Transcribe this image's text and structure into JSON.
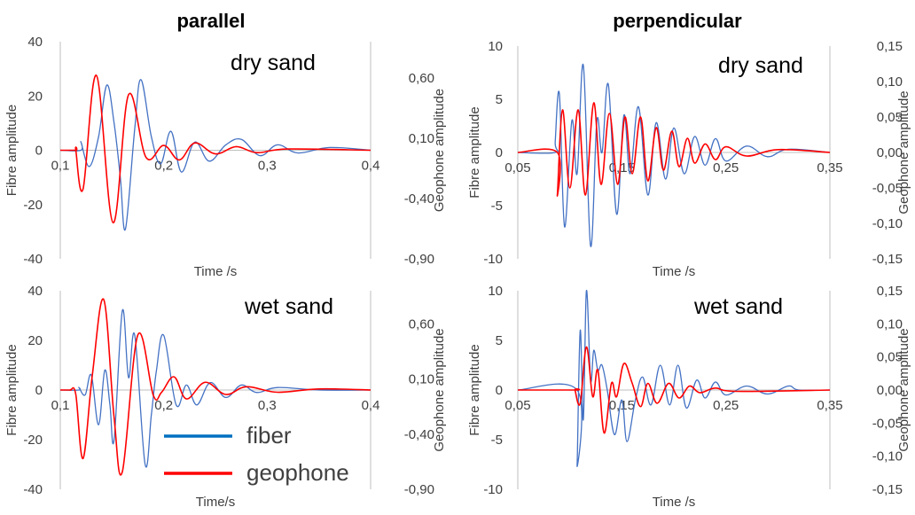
{
  "columns": [
    "parallel",
    "perpendicular"
  ],
  "legend": [
    {
      "label": "fiber",
      "color": "#0070c0"
    },
    {
      "label": "geophone",
      "color": "#ff0000"
    }
  ],
  "colors": {
    "fiber_line": "#4472c4",
    "geophone_line": "#ff0000",
    "axis": "#bfbfbf"
  },
  "chart_data": [
    {
      "type": "line",
      "column": "parallel",
      "panel_label": "dry sand",
      "xlabel": "Time /s",
      "ylabel": "Fibre amplitude",
      "y2label": "Geophone amplitude",
      "xlim": [
        0.1,
        0.4
      ],
      "ylim": [
        -40,
        40
      ],
      "y2lim": [
        -0.9,
        0.9
      ],
      "x_ticks": [
        "0,1",
        "0,2",
        "0,3",
        "0,4"
      ],
      "y_ticks": [
        "40",
        "20",
        "0",
        "-20",
        "-40"
      ],
      "y2_ticks": [
        "0,60",
        "0,10",
        "-0,40",
        "-0,90"
      ],
      "series": [
        {
          "name": "fiber",
          "axis": "left",
          "t0": 0.12,
          "peaks": [
            [
              0.12,
              3
            ],
            [
              0.128,
              -6
            ],
            [
              0.137,
              5
            ],
            [
              0.145,
              24
            ],
            [
              0.152,
              10
            ],
            [
              0.158,
              -10
            ],
            [
              0.163,
              -29
            ],
            [
              0.172,
              8
            ],
            [
              0.178,
              26
            ],
            [
              0.188,
              5
            ],
            [
              0.197,
              -5
            ],
            [
              0.207,
              7
            ],
            [
              0.217,
              -8
            ],
            [
              0.23,
              3
            ],
            [
              0.244,
              -4
            ],
            [
              0.26,
              2
            ],
            [
              0.275,
              4
            ],
            [
              0.293,
              -2
            ],
            [
              0.31,
              2
            ],
            [
              0.33,
              -1
            ],
            [
              0.36,
              1
            ],
            [
              0.4,
              0
            ]
          ]
        },
        {
          "name": "geophone",
          "axis": "right",
          "t0": 0.115,
          "peaks": [
            [
              0.115,
              0
            ],
            [
              0.122,
              -0.32
            ],
            [
              0.135,
              0.62
            ],
            [
              0.151,
              -0.6
            ],
            [
              0.166,
              0.46
            ],
            [
              0.183,
              -0.06
            ],
            [
              0.2,
              0.04
            ],
            [
              0.215,
              -0.08
            ],
            [
              0.23,
              0.06
            ],
            [
              0.25,
              -0.03
            ],
            [
              0.27,
              0.03
            ],
            [
              0.29,
              -0.02
            ],
            [
              0.32,
              0.01
            ],
            [
              0.4,
              0
            ]
          ]
        }
      ]
    },
    {
      "type": "line",
      "column": "perpendicular",
      "panel_label": "dry sand",
      "xlabel": "Time /s",
      "ylabel": "Fibre amplitude",
      "y2label": "Geophone amplitude",
      "xlim": [
        0.05,
        0.35
      ],
      "ylim": [
        -10,
        10
      ],
      "y2lim": [
        -0.15,
        0.15
      ],
      "x_ticks": [
        "0,05",
        "0,15",
        "0,25",
        "0,35"
      ],
      "y_ticks": [
        "10",
        "5",
        "0",
        "-5",
        "-10"
      ],
      "y2_ticks": [
        "0,15",
        "0,10",
        "0,05",
        "0,00",
        "-0,05",
        "-0,10",
        "-0,15"
      ],
      "series": [
        {
          "name": "fiber",
          "axis": "left",
          "t0": 0.086,
          "peaks": [
            [
              0.086,
              1
            ],
            [
              0.09,
              5.5
            ],
            [
              0.095,
              -7
            ],
            [
              0.102,
              3
            ],
            [
              0.107,
              -2
            ],
            [
              0.113,
              8.2
            ],
            [
              0.12,
              -8.8
            ],
            [
              0.126,
              3
            ],
            [
              0.131,
              0
            ],
            [
              0.137,
              6.4
            ],
            [
              0.145,
              -5.8
            ],
            [
              0.152,
              3.5
            ],
            [
              0.158,
              -2
            ],
            [
              0.166,
              4.3
            ],
            [
              0.175,
              -4
            ],
            [
              0.183,
              2.8
            ],
            [
              0.192,
              -2.5
            ],
            [
              0.2,
              2.3
            ],
            [
              0.21,
              -2
            ],
            [
              0.22,
              1.5
            ],
            [
              0.23,
              -1.2
            ],
            [
              0.24,
              1.3
            ],
            [
              0.25,
              -0.8
            ],
            [
              0.27,
              0.6
            ],
            [
              0.29,
              -0.4
            ],
            [
              0.31,
              0.3
            ],
            [
              0.35,
              0
            ]
          ]
        },
        {
          "name": "geophone",
          "axis": "right",
          "t0": 0.088,
          "peaks": [
            [
              0.088,
              -0.06
            ],
            [
              0.093,
              0.06
            ],
            [
              0.1,
              -0.05
            ],
            [
              0.108,
              0.06
            ],
            [
              0.115,
              -0.06
            ],
            [
              0.123,
              0.07
            ],
            [
              0.13,
              -0.045
            ],
            [
              0.138,
              0.055
            ],
            [
              0.146,
              -0.045
            ],
            [
              0.153,
              0.05
            ],
            [
              0.16,
              -0.03
            ],
            [
              0.168,
              0.05
            ],
            [
              0.175,
              -0.04
            ],
            [
              0.183,
              0.035
            ],
            [
              0.19,
              -0.025
            ],
            [
              0.198,
              0.03
            ],
            [
              0.205,
              -0.02
            ],
            [
              0.213,
              0.02
            ],
            [
              0.22,
              -0.015
            ],
            [
              0.23,
              0.012
            ],
            [
              0.24,
              -0.01
            ],
            [
              0.25,
              0.008
            ],
            [
              0.27,
              -0.005
            ],
            [
              0.3,
              0.004
            ],
            [
              0.35,
              0
            ]
          ]
        }
      ]
    },
    {
      "type": "line",
      "column": "parallel",
      "panel_label": "wet sand",
      "xlabel": "Time/s",
      "ylabel": "Fibre amplitude",
      "y2label": "Geophone amplitude",
      "xlim": [
        0.1,
        0.4
      ],
      "ylim": [
        -40,
        40
      ],
      "y2lim": [
        -0.9,
        0.9
      ],
      "x_ticks": [
        "0,1",
        "0,2",
        "0,3",
        "0,4"
      ],
      "y_ticks": [
        "40",
        "20",
        "0",
        "-20",
        "-40"
      ],
      "y2_ticks": [
        "0,60",
        "0,10",
        "-0,40",
        "-0,90"
      ],
      "series": [
        {
          "name": "fiber",
          "axis": "left",
          "t0": 0.118,
          "peaks": [
            [
              0.118,
              1
            ],
            [
              0.124,
              -2
            ],
            [
              0.13,
              6
            ],
            [
              0.137,
              -14
            ],
            [
              0.143,
              8
            ],
            [
              0.148,
              -6
            ],
            [
              0.152,
              -20
            ],
            [
              0.16,
              32
            ],
            [
              0.166,
              5
            ],
            [
              0.172,
              22
            ],
            [
              0.182,
              -30
            ],
            [
              0.188,
              -10
            ],
            [
              0.193,
              8
            ],
            [
              0.2,
              22
            ],
            [
              0.212,
              -6
            ],
            [
              0.222,
              2
            ],
            [
              0.232,
              -6
            ],
            [
              0.245,
              3
            ],
            [
              0.26,
              -3
            ],
            [
              0.275,
              2
            ],
            [
              0.29,
              -1
            ],
            [
              0.31,
              1
            ],
            [
              0.35,
              0
            ],
            [
              0.4,
              0
            ]
          ]
        },
        {
          "name": "geophone",
          "axis": "right",
          "t0": 0.11,
          "peaks": [
            [
              0.11,
              0
            ],
            [
              0.115,
              -0.04
            ],
            [
              0.122,
              -0.62
            ],
            [
              0.131,
              0.14
            ],
            [
              0.142,
              0.82
            ],
            [
              0.152,
              -0.25
            ],
            [
              0.16,
              -0.74
            ],
            [
              0.175,
              0.5
            ],
            [
              0.19,
              -0.05
            ],
            [
              0.198,
              -0.02
            ],
            [
              0.21,
              0.12
            ],
            [
              0.222,
              -0.08
            ],
            [
              0.24,
              0.07
            ],
            [
              0.26,
              -0.04
            ],
            [
              0.28,
              0.03
            ],
            [
              0.31,
              -0.02
            ],
            [
              0.35,
              0.01
            ],
            [
              0.4,
              0
            ]
          ]
        }
      ]
    },
    {
      "type": "line",
      "column": "perpendicular",
      "panel_label": "wet sand",
      "xlabel": "Time /s",
      "ylabel": "Fibre amplitude",
      "y2label": "Geophone amplitude",
      "xlim": [
        0.05,
        0.35
      ],
      "ylim": [
        -10,
        10
      ],
      "y2lim": [
        -0.15,
        0.15
      ],
      "x_ticks": [
        "0,05",
        "0,15",
        "0,25",
        "0,35"
      ],
      "y_ticks": [
        "10",
        "5",
        "0",
        "-5",
        "-10"
      ],
      "y2_ticks": [
        "0,15",
        "0,10",
        "0,05",
        "0,00",
        "-0,05",
        "-0,10",
        "-0,15"
      ],
      "series": [
        {
          "name": "fiber",
          "axis": "left",
          "t0": 0.107,
          "peaks": [
            [
              0.107,
              -7.6
            ],
            [
              0.11,
              6
            ],
            [
              0.113,
              -3
            ],
            [
              0.116,
              10
            ],
            [
              0.12,
              1
            ],
            [
              0.123,
              4
            ],
            [
              0.127,
              2
            ],
            [
              0.131,
              2.5
            ],
            [
              0.136,
              0
            ],
            [
              0.143,
              -4.5
            ],
            [
              0.15,
              -1
            ],
            [
              0.155,
              -5.2
            ],
            [
              0.163,
              -1
            ],
            [
              0.17,
              1.3
            ],
            [
              0.178,
              -1.5
            ],
            [
              0.187,
              2.5
            ],
            [
              0.196,
              -1.5
            ],
            [
              0.204,
              2.5
            ],
            [
              0.212,
              -1.8
            ],
            [
              0.222,
              1
            ],
            [
              0.23,
              -0.8
            ],
            [
              0.24,
              0.8
            ],
            [
              0.25,
              -0.5
            ],
            [
              0.27,
              0.4
            ],
            [
              0.29,
              -0.4
            ],
            [
              0.31,
              0.4
            ],
            [
              0.32,
              0
            ],
            [
              0.35,
              0
            ]
          ]
        },
        {
          "name": "geophone",
          "axis": "right",
          "t0": 0.105,
          "peaks": [
            [
              0.105,
              0
            ],
            [
              0.11,
              -0.02
            ],
            [
              0.116,
              0.065
            ],
            [
              0.122,
              -0.01
            ],
            [
              0.127,
              0.03
            ],
            [
              0.133,
              -0.065
            ],
            [
              0.14,
              0.01
            ],
            [
              0.145,
              -0.01
            ],
            [
              0.152,
              0.04
            ],
            [
              0.16,
              0.01
            ],
            [
              0.168,
              -0.025
            ],
            [
              0.175,
              0.01
            ],
            [
              0.184,
              -0.02
            ],
            [
              0.195,
              0.01
            ],
            [
              0.205,
              -0.012
            ],
            [
              0.215,
              0.006
            ],
            [
              0.225,
              -0.004
            ],
            [
              0.24,
              0.003
            ],
            [
              0.26,
              -0.002
            ],
            [
              0.35,
              0
            ]
          ]
        }
      ]
    }
  ]
}
